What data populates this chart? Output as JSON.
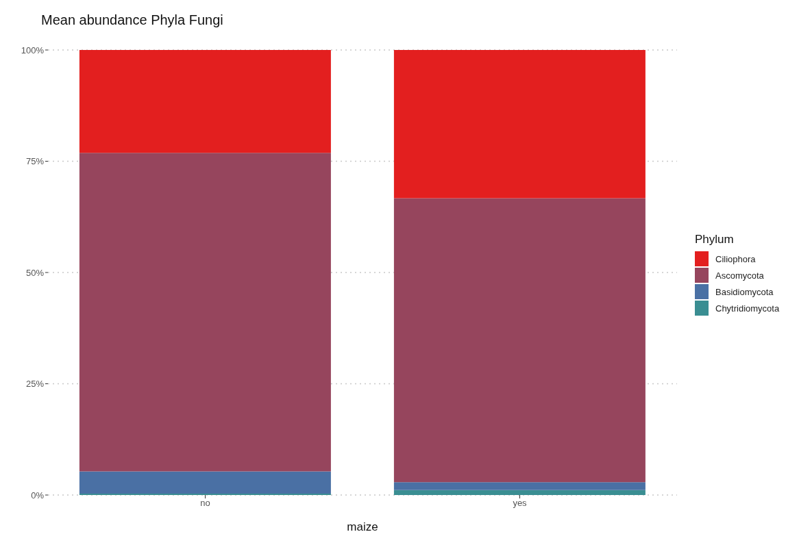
{
  "chart_data": {
    "type": "bar",
    "title": "Mean abundance Phyla Fungi",
    "xlabel": "maize",
    "legend_title": "Phylum",
    "categories": [
      "no",
      "yes"
    ],
    "stacked": true,
    "series": [
      {
        "name": "Chytridiomycota",
        "color": "#3a8e92",
        "values": [
          0.3,
          1.1
        ]
      },
      {
        "name": "Basidiomycota",
        "color": "#4a70a4",
        "values": [
          5.0,
          1.8
        ]
      },
      {
        "name": "Ascomycota",
        "color": "#96455d",
        "values": [
          71.6,
          63.8
        ]
      },
      {
        "name": "Ciliophora",
        "color": "#e31f1f",
        "values": [
          23.1,
          33.3
        ]
      }
    ],
    "ylim": [
      0,
      100
    ],
    "yticks": [
      {
        "value": 0,
        "label": "0%"
      },
      {
        "value": 25,
        "label": "25%"
      },
      {
        "value": 50,
        "label": "50%"
      },
      {
        "value": 75,
        "label": "75%"
      },
      {
        "value": 100,
        "label": "100%"
      }
    ],
    "grid": "y",
    "legend": "right"
  }
}
